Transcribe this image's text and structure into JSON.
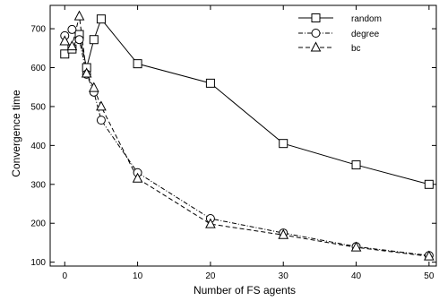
{
  "chart_data": {
    "type": "line",
    "title": "",
    "xlabel": "Number of FS agents",
    "ylabel": "Convergence time",
    "xlim": [
      -2,
      51
    ],
    "ylim": [
      90,
      760
    ],
    "xticks": [
      0,
      10,
      20,
      30,
      40,
      50
    ],
    "yticks": [
      100,
      200,
      300,
      400,
      500,
      600,
      700
    ],
    "grid": false,
    "legend_position": "top-right",
    "series": [
      {
        "name": "random",
        "marker": "square",
        "dash": "solid",
        "x": [
          0,
          1,
          2,
          3,
          4,
          5,
          10,
          20,
          30,
          40,
          50
        ],
        "y": [
          635,
          648,
          685,
          600,
          672,
          725,
          610,
          560,
          405,
          350,
          300
        ]
      },
      {
        "name": "degree",
        "marker": "circle",
        "dash": "dashdot",
        "x": [
          0,
          1,
          2,
          3,
          4,
          5,
          10,
          20,
          30,
          40,
          50
        ],
        "y": [
          682,
          698,
          672,
          583,
          537,
          465,
          330,
          212,
          175,
          140,
          117
        ]
      },
      {
        "name": "bc",
        "marker": "triangle",
        "dash": "dashed",
        "x": [
          0,
          1,
          2,
          3,
          4,
          5,
          10,
          20,
          30,
          40,
          50
        ],
        "y": [
          668,
          655,
          732,
          585,
          548,
          500,
          315,
          198,
          170,
          138,
          115
        ]
      }
    ]
  }
}
